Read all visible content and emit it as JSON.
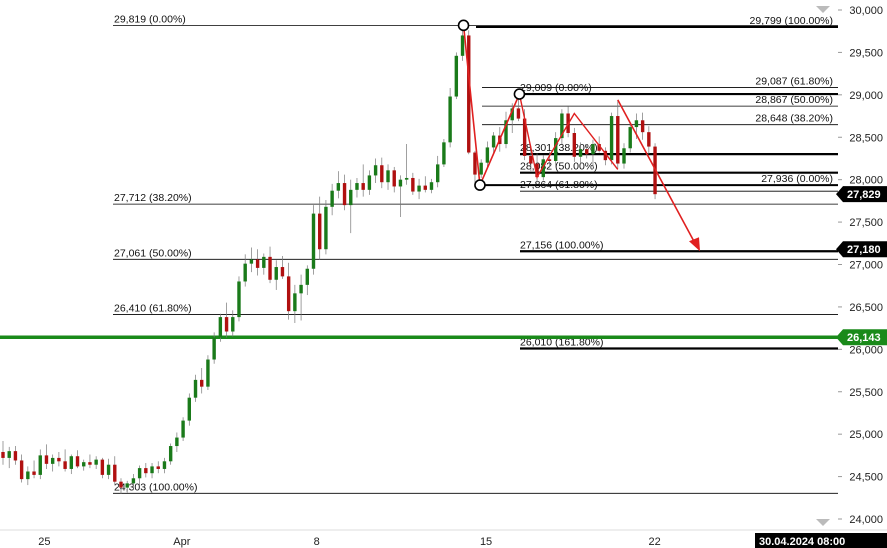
{
  "chart_data": {
    "type": "candlestick",
    "y_axis": {
      "min": 24000,
      "max": 30000,
      "ticks": [
        24000,
        24500,
        25000,
        25500,
        26000,
        26500,
        27000,
        27500,
        28000,
        28500,
        29000,
        29500,
        30000
      ],
      "tick_labels": [
        "24,000",
        "24,500",
        "25,000",
        "25,500",
        "26,000",
        "26,500",
        "27,000",
        "27,500",
        "28,000",
        "28,500",
        "29,000",
        "29,500",
        "30,000"
      ]
    },
    "x_axis": {
      "labels": [
        {
          "text": "25",
          "t": 0.05
        },
        {
          "text": "Apr",
          "t": 0.205
        },
        {
          "text": "8",
          "t": 0.357
        },
        {
          "text": "15",
          "t": 0.548
        },
        {
          "text": "22",
          "t": 0.738
        }
      ],
      "current_date": "30.04.2024 08:00"
    },
    "price_badges": [
      {
        "value": 27829,
        "label": "27,829",
        "color": "#000000"
      },
      {
        "value": 27180,
        "label": "27,180",
        "color": "#000000"
      },
      {
        "value": 26143,
        "label": "26,143",
        "color": "#1a8a1a"
      }
    ],
    "horizontal_support": {
      "value": 26143,
      "color": "#1a8a1a"
    },
    "fib_levels_major": [
      {
        "label": "29,819 (0.00%)",
        "value": 29819
      },
      {
        "label": "27,712 (38.20%)",
        "value": 27712
      },
      {
        "label": "27,061 (50.00%)",
        "value": 27061
      },
      {
        "label": "26,410 (61.80%)",
        "value": 26410
      },
      {
        "label": "24,303 (100.00%)",
        "value": 24303
      }
    ],
    "fib_levels_right": [
      {
        "label": "29,799 (100.00%)",
        "value": 29799
      },
      {
        "label": "29,087 (61.80%)",
        "value": 29087
      },
      {
        "label": "28,867 (50.00%)",
        "value": 28867
      },
      {
        "label": "28,648 (38.20%)",
        "value": 28648
      },
      {
        "label": "27,936 (0.00%)",
        "value": 27936
      }
    ],
    "fib_levels_extension": [
      {
        "label": "29,009 (0.00%)",
        "value": 29009
      },
      {
        "label": "28,301 (38.20%)",
        "value": 28301
      },
      {
        "label": "28,082 (50.00%)",
        "value": 28082
      },
      {
        "label": "27,864 (61.80%)",
        "value": 27864
      },
      {
        "label": "27,156 (100.00%)",
        "value": 27156
      },
      {
        "label": "26,010 (161.80%)",
        "value": 26010
      }
    ],
    "colors": {
      "up": "#1a7a1a",
      "down": "#b01010",
      "zigzag": "#e02020"
    },
    "candles": [
      {
        "o": 24790,
        "h": 24920,
        "l": 24640,
        "c": 24720
      },
      {
        "o": 24720,
        "h": 24850,
        "l": 24600,
        "c": 24800
      },
      {
        "o": 24800,
        "h": 24860,
        "l": 24640,
        "c": 24690
      },
      {
        "o": 24690,
        "h": 24760,
        "l": 24430,
        "c": 24470
      },
      {
        "o": 24470,
        "h": 24620,
        "l": 24400,
        "c": 24560
      },
      {
        "o": 24560,
        "h": 24690,
        "l": 24480,
        "c": 24520
      },
      {
        "o": 24520,
        "h": 24820,
        "l": 24470,
        "c": 24750
      },
      {
        "o": 24750,
        "h": 24880,
        "l": 24590,
        "c": 24650
      },
      {
        "o": 24650,
        "h": 24760,
        "l": 24560,
        "c": 24720
      },
      {
        "o": 24720,
        "h": 24790,
        "l": 24620,
        "c": 24680
      },
      {
        "o": 24680,
        "h": 24820,
        "l": 24560,
        "c": 24590
      },
      {
        "o": 24590,
        "h": 24760,
        "l": 24530,
        "c": 24740
      },
      {
        "o": 24740,
        "h": 24810,
        "l": 24600,
        "c": 24620
      },
      {
        "o": 24620,
        "h": 24700,
        "l": 24570,
        "c": 24670
      },
      {
        "o": 24670,
        "h": 24760,
        "l": 24600,
        "c": 24640
      },
      {
        "o": 24640,
        "h": 24740,
        "l": 24590,
        "c": 24700
      },
      {
        "o": 24700,
        "h": 24720,
        "l": 24480,
        "c": 24520
      },
      {
        "o": 24520,
        "h": 24710,
        "l": 24470,
        "c": 24640
      },
      {
        "o": 24640,
        "h": 24740,
        "l": 24400,
        "c": 24440
      },
      {
        "o": 24440,
        "h": 24480,
        "l": 24300,
        "c": 24370
      },
      {
        "o": 24370,
        "h": 24450,
        "l": 24310,
        "c": 24420
      },
      {
        "o": 24420,
        "h": 24530,
        "l": 24340,
        "c": 24480
      },
      {
        "o": 24480,
        "h": 24630,
        "l": 24400,
        "c": 24600
      },
      {
        "o": 24600,
        "h": 24660,
        "l": 24490,
        "c": 24540
      },
      {
        "o": 24540,
        "h": 24660,
        "l": 24480,
        "c": 24620
      },
      {
        "o": 24620,
        "h": 24680,
        "l": 24540,
        "c": 24590
      },
      {
        "o": 24590,
        "h": 24720,
        "l": 24540,
        "c": 24680
      },
      {
        "o": 24680,
        "h": 24890,
        "l": 24640,
        "c": 24860
      },
      {
        "o": 24860,
        "h": 25020,
        "l": 24790,
        "c": 24960
      },
      {
        "o": 24960,
        "h": 25200,
        "l": 24920,
        "c": 25160
      },
      {
        "o": 25160,
        "h": 25480,
        "l": 25100,
        "c": 25430
      },
      {
        "o": 25430,
        "h": 25700,
        "l": 25380,
        "c": 25640
      },
      {
        "o": 25640,
        "h": 25780,
        "l": 25480,
        "c": 25560
      },
      {
        "o": 25560,
        "h": 25930,
        "l": 25520,
        "c": 25880
      },
      {
        "o": 25880,
        "h": 26200,
        "l": 25830,
        "c": 26140
      },
      {
        "o": 26140,
        "h": 26420,
        "l": 26090,
        "c": 26380
      },
      {
        "o": 26380,
        "h": 26550,
        "l": 26140,
        "c": 26210
      },
      {
        "o": 26210,
        "h": 26460,
        "l": 26150,
        "c": 26380
      },
      {
        "o": 26380,
        "h": 26860,
        "l": 26330,
        "c": 26800
      },
      {
        "o": 26800,
        "h": 27120,
        "l": 26740,
        "c": 27010
      },
      {
        "o": 27010,
        "h": 27200,
        "l": 26910,
        "c": 27060
      },
      {
        "o": 27060,
        "h": 27180,
        "l": 26870,
        "c": 26960
      },
      {
        "o": 26960,
        "h": 27130,
        "l": 26880,
        "c": 27090
      },
      {
        "o": 27090,
        "h": 27210,
        "l": 26780,
        "c": 26820
      },
      {
        "o": 26820,
        "h": 27050,
        "l": 26700,
        "c": 26970
      },
      {
        "o": 26970,
        "h": 27100,
        "l": 26830,
        "c": 26860
      },
      {
        "o": 26860,
        "h": 27020,
        "l": 26350,
        "c": 26450
      },
      {
        "o": 26450,
        "h": 26760,
        "l": 26310,
        "c": 26660
      },
      {
        "o": 26660,
        "h": 26880,
        "l": 26340,
        "c": 26760
      },
      {
        "o": 26760,
        "h": 26990,
        "l": 26640,
        "c": 26950
      },
      {
        "o": 26950,
        "h": 27700,
        "l": 26880,
        "c": 27600
      },
      {
        "o": 27600,
        "h": 27800,
        "l": 27060,
        "c": 27180
      },
      {
        "o": 27180,
        "h": 27760,
        "l": 27120,
        "c": 27680
      },
      {
        "o": 27680,
        "h": 27950,
        "l": 27580,
        "c": 27870
      },
      {
        "o": 27870,
        "h": 28100,
        "l": 27780,
        "c": 27960
      },
      {
        "o": 27960,
        "h": 28060,
        "l": 27640,
        "c": 27700
      },
      {
        "o": 27700,
        "h": 28000,
        "l": 27370,
        "c": 27880
      },
      {
        "o": 27880,
        "h": 28020,
        "l": 27790,
        "c": 27960
      },
      {
        "o": 27960,
        "h": 28180,
        "l": 27800,
        "c": 27880
      },
      {
        "o": 27880,
        "h": 28110,
        "l": 27820,
        "c": 28050
      },
      {
        "o": 28050,
        "h": 28250,
        "l": 27960,
        "c": 28170
      },
      {
        "o": 28170,
        "h": 28260,
        "l": 27900,
        "c": 27970
      },
      {
        "o": 27970,
        "h": 28180,
        "l": 27880,
        "c": 28110
      },
      {
        "o": 28110,
        "h": 28150,
        "l": 27850,
        "c": 27920
      },
      {
        "o": 27920,
        "h": 28050,
        "l": 27560,
        "c": 28000
      },
      {
        "o": 28000,
        "h": 28420,
        "l": 27940,
        "c": 28020
      },
      {
        "o": 28020,
        "h": 28080,
        "l": 27820,
        "c": 27860
      },
      {
        "o": 27860,
        "h": 28010,
        "l": 27770,
        "c": 27930
      },
      {
        "o": 27930,
        "h": 28040,
        "l": 27850,
        "c": 27880
      },
      {
        "o": 27880,
        "h": 28010,
        "l": 27840,
        "c": 27970
      },
      {
        "o": 27970,
        "h": 28280,
        "l": 27910,
        "c": 28180
      },
      {
        "o": 28180,
        "h": 28480,
        "l": 28150,
        "c": 28440
      },
      {
        "o": 28440,
        "h": 29080,
        "l": 28380,
        "c": 28980
      },
      {
        "o": 28980,
        "h": 29500,
        "l": 28950,
        "c": 29460
      },
      {
        "o": 29460,
        "h": 29820,
        "l": 29400,
        "c": 29700
      },
      {
        "o": 29700,
        "h": 29760,
        "l": 28300,
        "c": 28320
      },
      {
        "o": 28320,
        "h": 28340,
        "l": 27930,
        "c": 28060
      },
      {
        "o": 28060,
        "h": 28240,
        "l": 28020,
        "c": 28200
      },
      {
        "o": 28200,
        "h": 28450,
        "l": 28150,
        "c": 28380
      },
      {
        "o": 28380,
        "h": 28560,
        "l": 28290,
        "c": 28520
      },
      {
        "o": 28520,
        "h": 28620,
        "l": 28330,
        "c": 28420
      },
      {
        "o": 28420,
        "h": 28800,
        "l": 28370,
        "c": 28700
      },
      {
        "o": 28700,
        "h": 28900,
        "l": 28550,
        "c": 28840
      },
      {
        "o": 28840,
        "h": 28990,
        "l": 28690,
        "c": 28720
      },
      {
        "o": 28720,
        "h": 28830,
        "l": 28230,
        "c": 28280
      },
      {
        "o": 28280,
        "h": 28400,
        "l": 28100,
        "c": 28190
      },
      {
        "o": 28190,
        "h": 28310,
        "l": 27970,
        "c": 28030
      },
      {
        "o": 28030,
        "h": 28290,
        "l": 27990,
        "c": 28240
      },
      {
        "o": 28240,
        "h": 28330,
        "l": 28140,
        "c": 28220
      },
      {
        "o": 28220,
        "h": 28560,
        "l": 28150,
        "c": 28490
      },
      {
        "o": 28490,
        "h": 28830,
        "l": 28420,
        "c": 28780
      },
      {
        "o": 28780,
        "h": 28860,
        "l": 28500,
        "c": 28550
      },
      {
        "o": 28550,
        "h": 28610,
        "l": 28210,
        "c": 28270
      },
      {
        "o": 28270,
        "h": 28440,
        "l": 28180,
        "c": 28360
      },
      {
        "o": 28360,
        "h": 28420,
        "l": 28250,
        "c": 28300
      },
      {
        "o": 28300,
        "h": 28470,
        "l": 28150,
        "c": 28420
      },
      {
        "o": 28420,
        "h": 28510,
        "l": 28320,
        "c": 28340
      },
      {
        "o": 28340,
        "h": 28380,
        "l": 28170,
        "c": 28230
      },
      {
        "o": 28230,
        "h": 28790,
        "l": 28180,
        "c": 28750
      },
      {
        "o": 28750,
        "h": 28940,
        "l": 28130,
        "c": 28190
      },
      {
        "o": 28190,
        "h": 28430,
        "l": 28130,
        "c": 28370
      },
      {
        "o": 28370,
        "h": 28660,
        "l": 28320,
        "c": 28620
      },
      {
        "o": 28620,
        "h": 28780,
        "l": 28480,
        "c": 28700
      },
      {
        "o": 28700,
        "h": 28790,
        "l": 28470,
        "c": 28560
      },
      {
        "o": 28560,
        "h": 28630,
        "l": 28300,
        "c": 28390
      },
      {
        "o": 28390,
        "h": 28430,
        "l": 27770,
        "c": 27829
      }
    ]
  }
}
